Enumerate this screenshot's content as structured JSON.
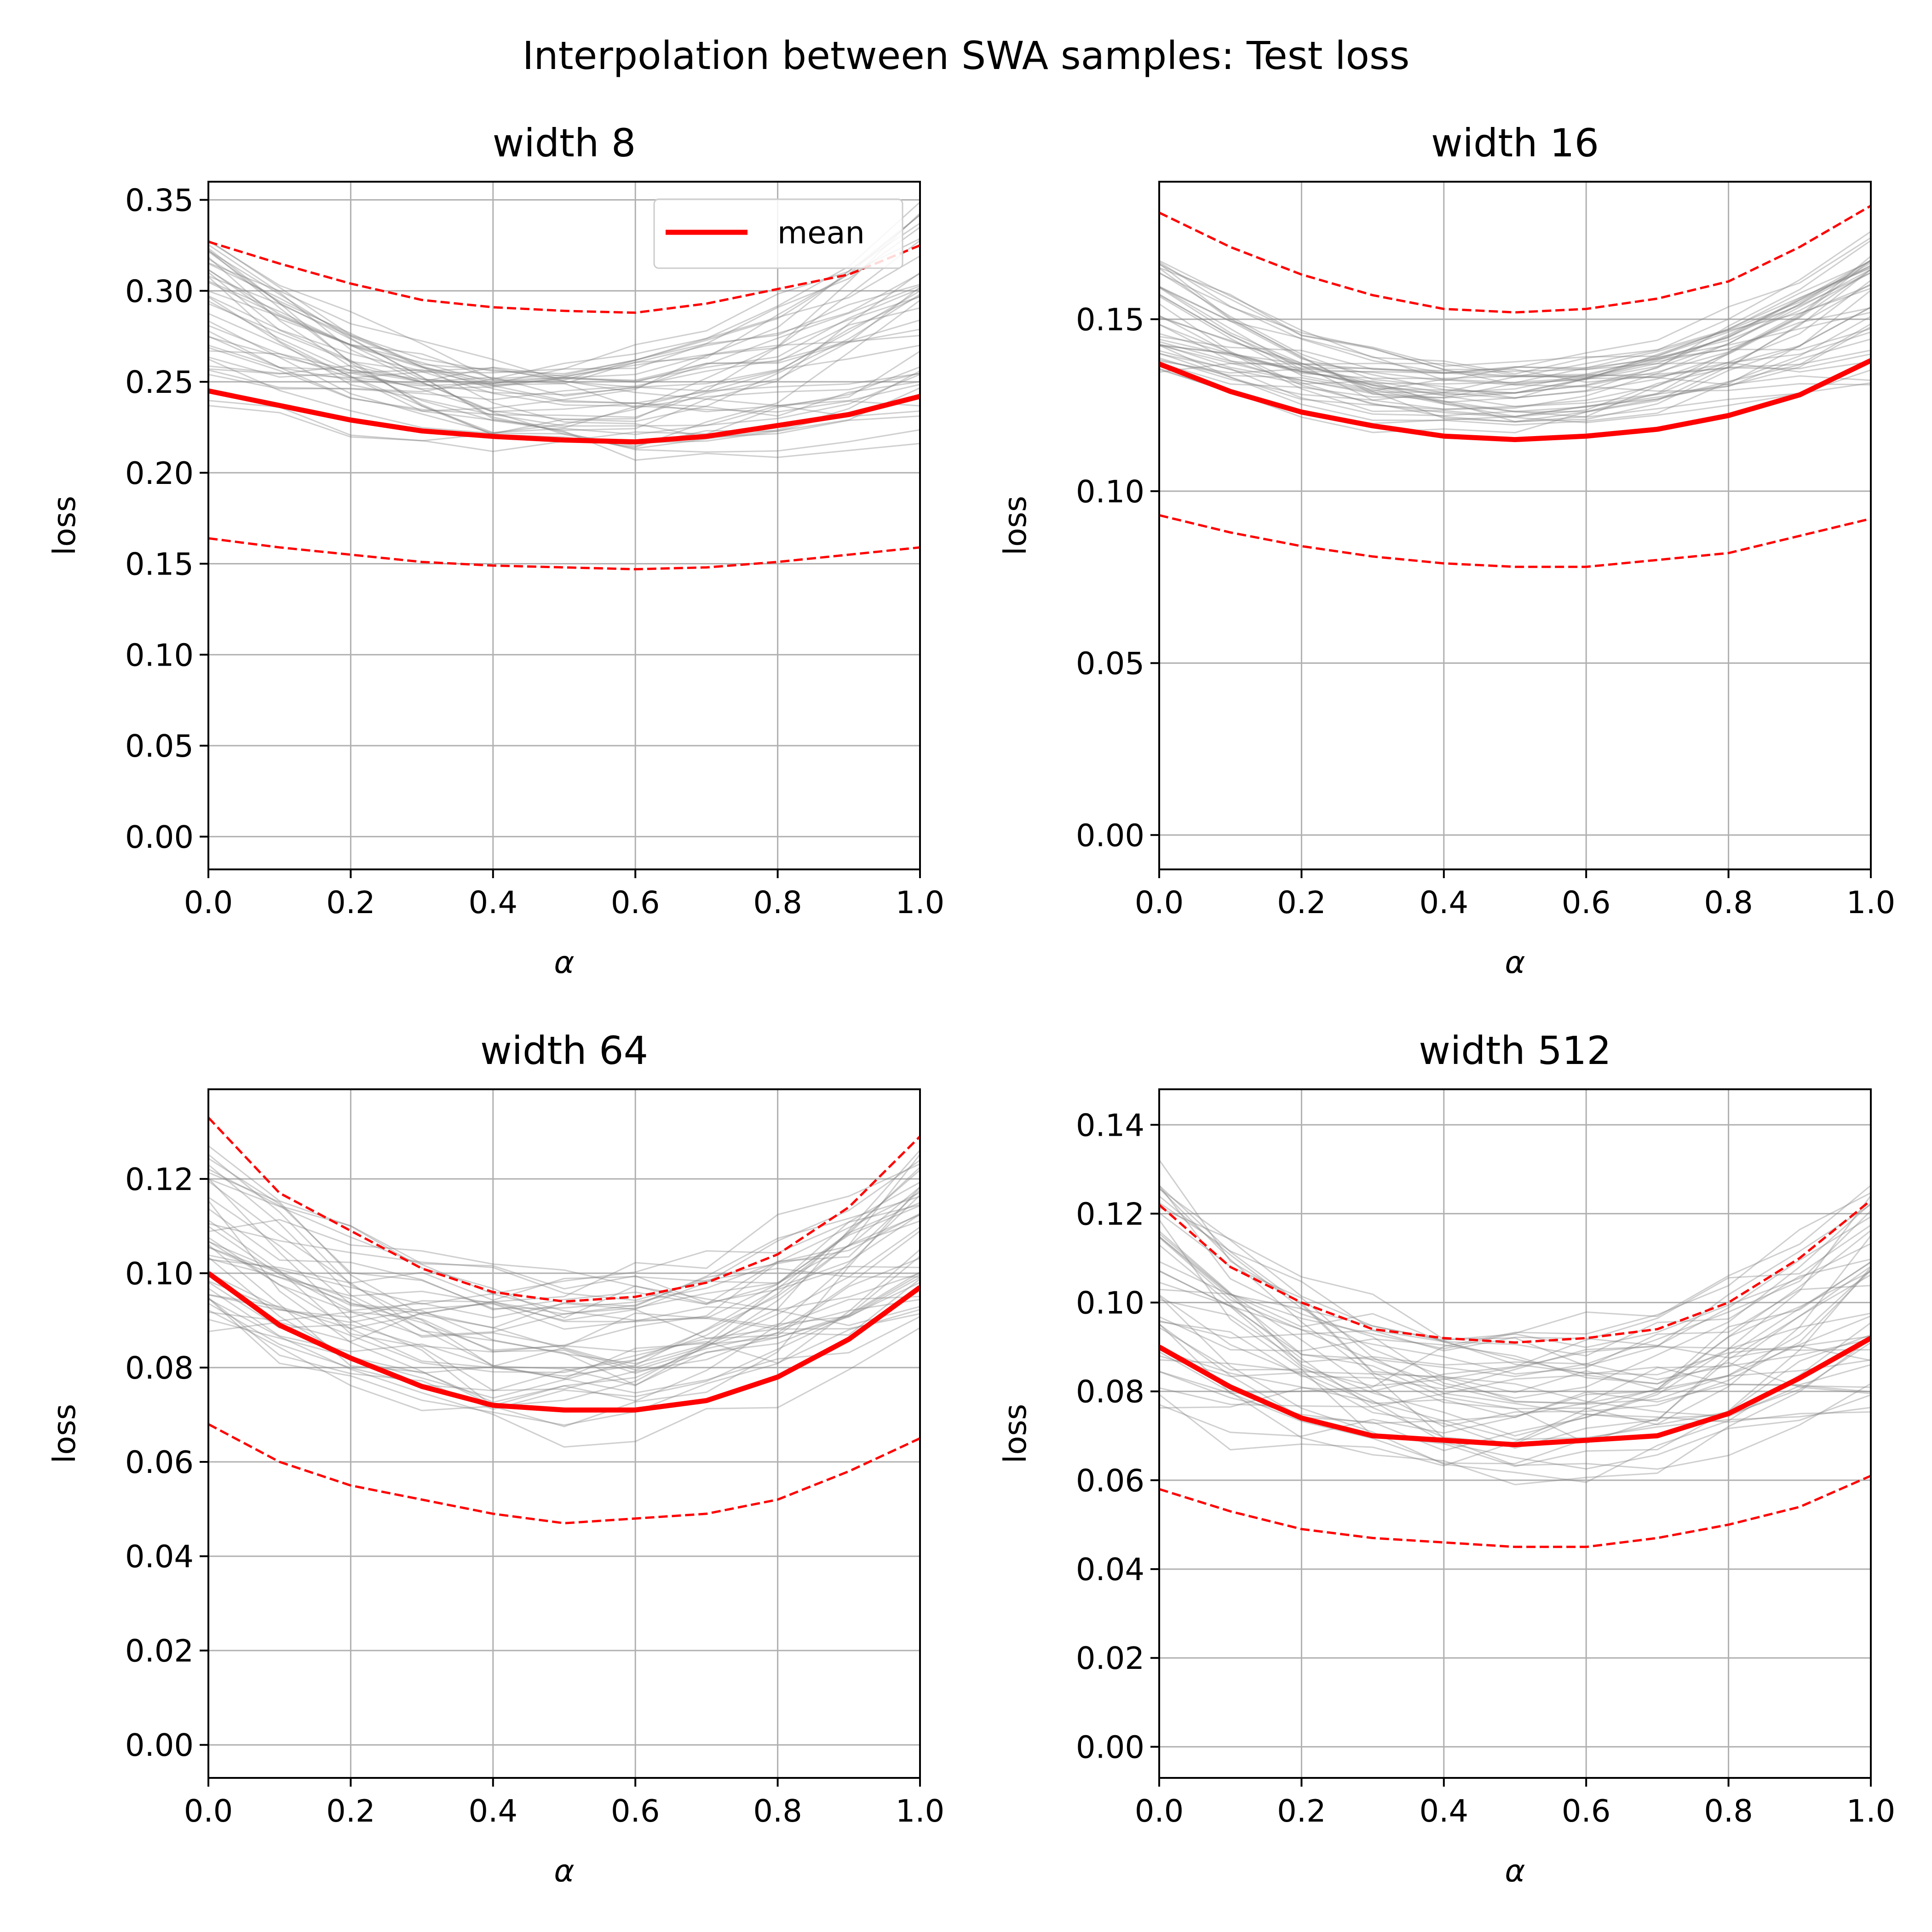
{
  "figure": {
    "suptitle": "Interpolation between SWA samples: Test loss"
  },
  "colors": {
    "mean": "#ff0000",
    "bounds": "#ff0000",
    "samples": "#808080",
    "grid": "#b0b0b0"
  },
  "legend": {
    "label": "mean",
    "location": "upper right of first panel"
  },
  "chart_data": [
    {
      "type": "line",
      "title": "width 8",
      "xlabel": "α",
      "ylabel": "loss",
      "xlim": [
        0.0,
        1.0
      ],
      "ylim": [
        -0.018,
        0.36
      ],
      "grid": true,
      "x_ticks": [
        "0.0",
        "0.2",
        "0.4",
        "0.6",
        "0.8",
        "1.0"
      ],
      "y_ticks": [
        "0.00",
        "0.05",
        "0.10",
        "0.15",
        "0.20",
        "0.25",
        "0.30",
        "0.35"
      ],
      "x": [
        0.0,
        0.1,
        0.2,
        0.3,
        0.4,
        0.5,
        0.6,
        0.7,
        0.8,
        0.9,
        1.0
      ],
      "mean": [
        0.245,
        0.237,
        0.229,
        0.223,
        0.22,
        0.218,
        0.217,
        0.22,
        0.226,
        0.232,
        0.242
      ],
      "upper": [
        0.327,
        0.315,
        0.304,
        0.295,
        0.291,
        0.289,
        0.288,
        0.293,
        0.301,
        0.309,
        0.325
      ],
      "lower": [
        0.164,
        0.159,
        0.155,
        0.151,
        0.149,
        0.148,
        0.147,
        0.148,
        0.151,
        0.155,
        0.159
      ],
      "sample_spread": {
        "start": [
          0.24,
          0.33
        ],
        "mid": [
          0.215,
          0.265
        ],
        "end": [
          0.215,
          0.345
        ]
      }
    },
    {
      "type": "line",
      "title": "width 16",
      "xlabel": "α",
      "ylabel": "loss",
      "xlim": [
        0.0,
        1.0
      ],
      "ylim": [
        -0.01,
        0.19
      ],
      "grid": true,
      "x_ticks": [
        "0.0",
        "0.2",
        "0.4",
        "0.6",
        "0.8",
        "1.0"
      ],
      "y_ticks": [
        "0.00",
        "0.05",
        "0.10",
        "0.15"
      ],
      "x": [
        0.0,
        0.1,
        0.2,
        0.3,
        0.4,
        0.5,
        0.6,
        0.7,
        0.8,
        0.9,
        1.0
      ],
      "mean": [
        0.137,
        0.129,
        0.123,
        0.119,
        0.116,
        0.115,
        0.116,
        0.118,
        0.122,
        0.128,
        0.138
      ],
      "upper": [
        0.181,
        0.171,
        0.163,
        0.157,
        0.153,
        0.152,
        0.153,
        0.156,
        0.161,
        0.171,
        0.183
      ],
      "lower": [
        0.093,
        0.088,
        0.084,
        0.081,
        0.079,
        0.078,
        0.078,
        0.08,
        0.082,
        0.087,
        0.092
      ],
      "sample_spread": {
        "start": [
          0.135,
          0.168
        ],
        "mid": [
          0.118,
          0.14
        ],
        "end": [
          0.132,
          0.175
        ]
      }
    },
    {
      "type": "line",
      "title": "width 64",
      "xlabel": "α",
      "ylabel": "loss",
      "xlim": [
        0.0,
        1.0
      ],
      "ylim": [
        -0.007,
        0.139
      ],
      "grid": true,
      "x_ticks": [
        "0.0",
        "0.2",
        "0.4",
        "0.6",
        "0.8",
        "1.0"
      ],
      "y_ticks": [
        "0.00",
        "0.02",
        "0.04",
        "0.06",
        "0.08",
        "0.10",
        "0.12"
      ],
      "x": [
        0.0,
        0.1,
        0.2,
        0.3,
        0.4,
        0.5,
        0.6,
        0.7,
        0.8,
        0.9,
        1.0
      ],
      "mean": [
        0.1,
        0.089,
        0.082,
        0.076,
        0.072,
        0.071,
        0.071,
        0.073,
        0.078,
        0.086,
        0.097
      ],
      "upper": [
        0.133,
        0.117,
        0.109,
        0.101,
        0.096,
        0.094,
        0.095,
        0.098,
        0.104,
        0.114,
        0.129
      ],
      "lower": [
        0.068,
        0.06,
        0.055,
        0.052,
        0.049,
        0.047,
        0.048,
        0.049,
        0.052,
        0.058,
        0.065
      ],
      "sample_spread": {
        "start": [
          0.09,
          0.126
        ],
        "mid": [
          0.066,
          0.105
        ],
        "end": [
          0.09,
          0.125
        ]
      }
    },
    {
      "type": "line",
      "title": "width 512",
      "xlabel": "α",
      "ylabel": "loss",
      "xlim": [
        0.0,
        1.0
      ],
      "ylim": [
        -0.007,
        0.148
      ],
      "grid": true,
      "x_ticks": [
        "0.0",
        "0.2",
        "0.4",
        "0.6",
        "0.8",
        "1.0"
      ],
      "y_ticks": [
        "0.00",
        "0.02",
        "0.04",
        "0.06",
        "0.08",
        "0.10",
        "0.12",
        "0.14"
      ],
      "x": [
        0.0,
        0.1,
        0.2,
        0.3,
        0.4,
        0.5,
        0.6,
        0.7,
        0.8,
        0.9,
        1.0
      ],
      "mean": [
        0.09,
        0.081,
        0.074,
        0.07,
        0.069,
        0.068,
        0.069,
        0.07,
        0.075,
        0.083,
        0.092
      ],
      "upper": [
        0.122,
        0.108,
        0.1,
        0.094,
        0.092,
        0.091,
        0.092,
        0.094,
        0.1,
        0.11,
        0.123
      ],
      "lower": [
        0.058,
        0.053,
        0.049,
        0.047,
        0.046,
        0.045,
        0.045,
        0.047,
        0.05,
        0.054,
        0.061
      ],
      "sample_spread": {
        "start": [
          0.075,
          0.13
        ],
        "mid": [
          0.06,
          0.1
        ],
        "end": [
          0.078,
          0.125
        ]
      }
    }
  ]
}
